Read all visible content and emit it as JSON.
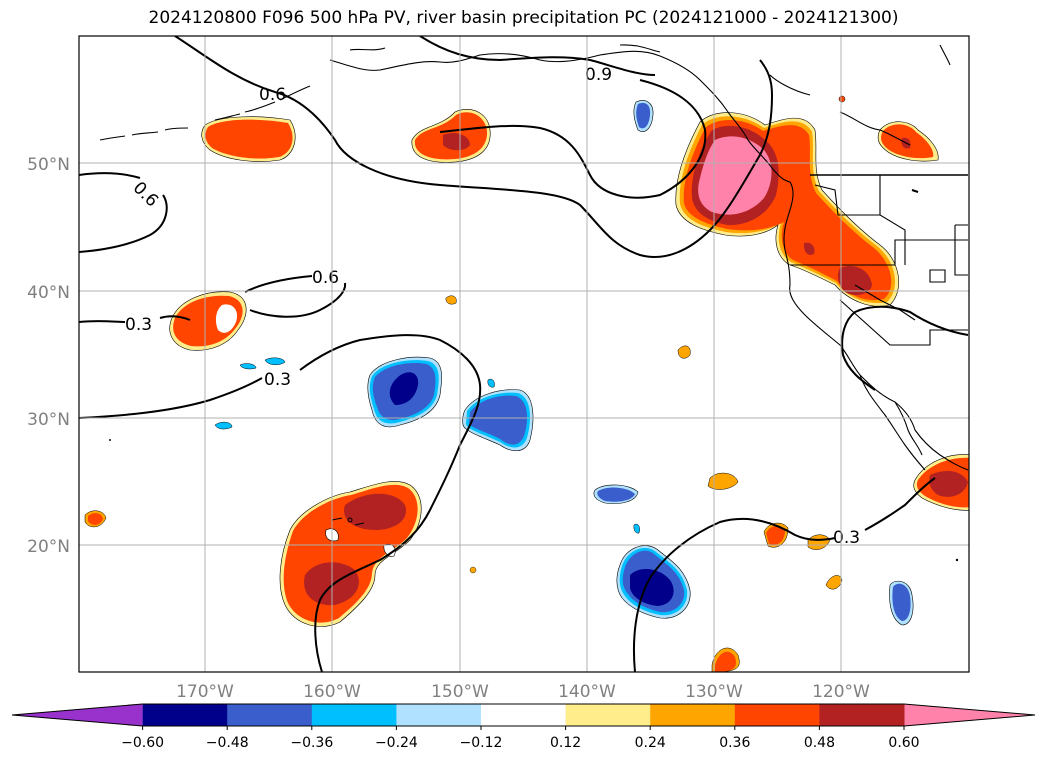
{
  "title": "2024120800 F096 500 hPa PV, river basin precipitation PC (2024121000 - 2024121300)",
  "map": {
    "lon_ticks": [
      "170°W",
      "160°W",
      "150°W",
      "140°W",
      "130°W",
      "120°W"
    ],
    "lat_ticks": [
      "50°N",
      "40°N",
      "30°N",
      "20°N"
    ],
    "contour_labels": [
      "0.9",
      "0.6",
      "0.6",
      "0.6",
      "0.3",
      "0.3",
      "0.3"
    ]
  },
  "colorbar": {
    "ticks": [
      "−0.60",
      "−0.48",
      "−0.36",
      "−0.24",
      "−0.12",
      "0.12",
      "0.24",
      "0.36",
      "0.48",
      "0.60"
    ],
    "colors": [
      "#9932cc",
      "#00008b",
      "#3a5fcd",
      "#00bfff",
      "#b0e2ff",
      "#ffffff",
      "#ffec8b",
      "#ffa500",
      "#ff4500",
      "#b22222",
      "#ff82ab"
    ]
  }
}
